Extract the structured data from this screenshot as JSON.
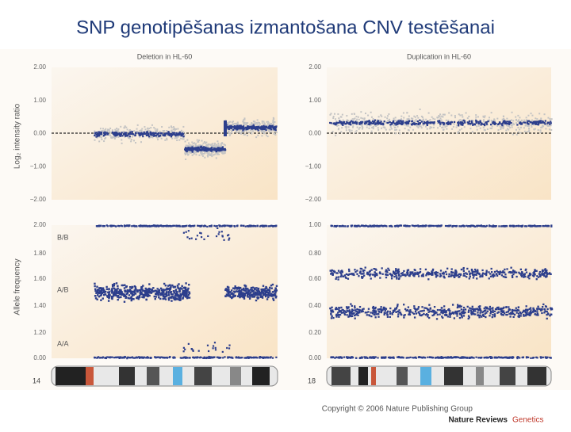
{
  "slide": {
    "title": "SNP genotipēšanas izmantošana CNV testēšanai"
  },
  "figure": {
    "panels": [
      {
        "title": "Deletion in HL-60",
        "chromosome": "14",
        "intensity": {
          "axis_label": "Log₂ intensity ratio",
          "ticks": [
            "2.00",
            "1.00",
            "0.00",
            "−1.00",
            "−2.00"
          ]
        },
        "allele": {
          "axis_label": "Allele frequency",
          "ticks": [
            "2.00",
            "1.80",
            "1.60",
            "1.40",
            "1.20",
            "0.00"
          ],
          "genotypes": [
            "B/B",
            "A/B",
            "A/A"
          ]
        }
      },
      {
        "title": "Duplication in HL-60",
        "chromosome": "18",
        "intensity": {
          "ticks": [
            "2.00",
            "1.00",
            "0.00",
            "−1.00",
            "−2.00"
          ]
        },
        "allele": {
          "ticks": [
            "1.00",
            "0.80",
            "0.60",
            "0.40",
            "0.20",
            "0.00"
          ]
        }
      }
    ]
  },
  "credit": {
    "copyright": "Copyright © 2006 Nature Publishing Group",
    "journal": "Nature Reviews",
    "section": "Genetics"
  }
}
